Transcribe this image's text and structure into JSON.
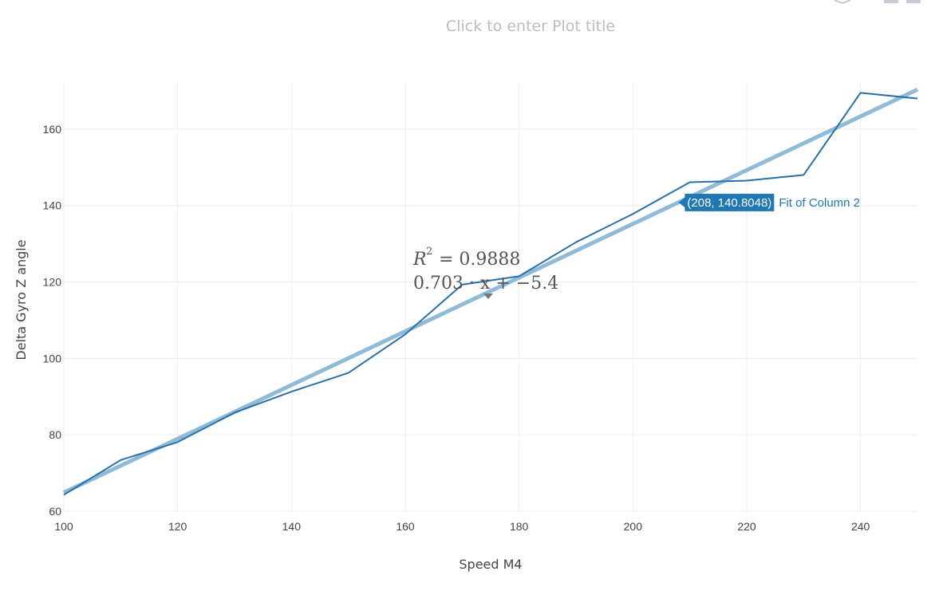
{
  "title": "Click to enter Plot title",
  "colors": {
    "data_line": "#2a6fa8",
    "fit_line": "#8fbad8",
    "hover_bg": "#1f77b4",
    "hover_text": "#ffffff",
    "annotation": "#555555"
  },
  "annotation": {
    "r2_symbol": "R",
    "r2_exponent": "2",
    "r2_rest": "= 0.9888",
    "equation": "0.703 · x + −5.4"
  },
  "hover": {
    "value": "(208, 140.8048)",
    "series": "Fit of Column 2"
  },
  "chart_data": {
    "type": "line",
    "title": "",
    "xlabel": "Speed M4",
    "ylabel": "Delta Gyro Z angle",
    "xlim": [
      100,
      250
    ],
    "ylim": [
      60,
      175
    ],
    "x_ticks": [
      100,
      120,
      140,
      160,
      180,
      200,
      220,
      240
    ],
    "y_ticks": [
      60,
      80,
      100,
      120,
      140,
      160
    ],
    "grid": true,
    "series": [
      {
        "name": "",
        "x": [
          100,
          110,
          120,
          130,
          140,
          150,
          160,
          170,
          180,
          190,
          200,
          210,
          220,
          230,
          240,
          250
        ],
        "y": [
          64.3,
          73.4,
          78.1,
          85.8,
          91.3,
          96.2,
          106.3,
          119.3,
          121.5,
          130.4,
          137.8,
          146.1,
          146.5,
          148.0,
          169.5,
          168.0
        ]
      },
      {
        "name": "Fit of Column 2",
        "type": "fit",
        "slope": 0.703,
        "intercept": -5.4,
        "r2": 0.9888,
        "x": [
          100,
          250
        ],
        "y": [
          64.9,
          170.35
        ]
      }
    ],
    "hover_point": {
      "x": 208,
      "y": 140.8048
    }
  }
}
